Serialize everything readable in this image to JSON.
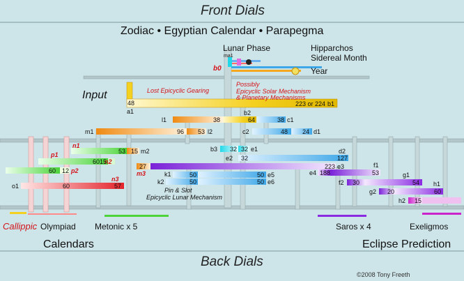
{
  "header": {
    "front_dials": "Front Dials",
    "subtitle": "Zodiac  •  Egyptian Calendar  •  Parapegma",
    "lunar_phase": "Lunar Phase",
    "hipparchos": "Hipparchos",
    "sidereal_month": "Sidereal Month",
    "year": "Year"
  },
  "annotations": {
    "input": "Input",
    "lost_gearing": "Lost Epicyclic Gearing",
    "possibly_1": "Possibly",
    "possibly_2": "Epicyclic Solar Mechanism",
    "possibly_3": "& Planetary Mechanisms",
    "pin_slot_1": "Pin & Slot",
    "pin_slot_2": "Epicyclic Lunar Mechanism"
  },
  "bottom": {
    "callippic": "Callippic",
    "olympiad": "Olympiad",
    "metonic": "Metonic x 5",
    "saros": "Saros x 4",
    "exeligmos": "Exeligmos",
    "calendars": "Calendars",
    "eclipse_prediction": "Eclipse Prediction",
    "back_dials": "Back Dials",
    "copyright": "©2008 Tony Freeth"
  },
  "gear_labels": {
    "ma1": "ma1",
    "b0": "b0",
    "a1": "a1",
    "b1": "b1",
    "l1": "l1",
    "b2": "b2",
    "c1": "c1",
    "m1": "m1",
    "l2": "l2",
    "c2": "c2",
    "d1": "d1",
    "n1": "n1",
    "m2": "m2",
    "b3": "b3",
    "e1": "e1",
    "p1": "p1",
    "e2": "e2",
    "d2": "d2",
    "n2": "n2",
    "p2": "p2",
    "m3": "m3",
    "e3": "e3",
    "f1": "f1",
    "e4": "e4",
    "k1": "k1",
    "e5": "e5",
    "g1": "g1",
    "n3": "n3",
    "o1": "o1",
    "k2": "k2",
    "e6": "e6",
    "f2": "f2",
    "h1": "h1",
    "g2": "g2",
    "h2": "h2"
  },
  "teeth": {
    "a1": "48",
    "b1": "223 or 224",
    "l1": "38",
    "b2": "64",
    "c1": "38",
    "m1": "96",
    "l2": "53",
    "c2": "48",
    "d1": "24",
    "n1": "53",
    "m2": "15",
    "b3": "32",
    "e1": "32",
    "p1": "60",
    "n2": "15",
    "e2": "32",
    "d2": "127",
    "p2": "60",
    "p2b": "12",
    "m3": "27",
    "e3": "223",
    "e4": "188",
    "f1": "53",
    "k1": "50",
    "e5": "50",
    "o1": "60",
    "n3": "57",
    "k2": "50",
    "e6": "50",
    "f2": "30",
    "g1": "54",
    "g2": "20",
    "h1": "60",
    "h2": "15"
  },
  "colors": {
    "background": "#cde4e8",
    "frame": "#a9bcbf",
    "accent_red": "#d4141a",
    "gear_yellow": "#f4d020",
    "gear_orange": "#ef8a12",
    "gear_blue": "#3ea7e8",
    "gear_cyan": "#22d8e8",
    "gear_green": "#4cd43a",
    "gear_red": "#e3232a",
    "gear_purple": "#8a2be2",
    "gear_magenta": "#cc22cc"
  }
}
